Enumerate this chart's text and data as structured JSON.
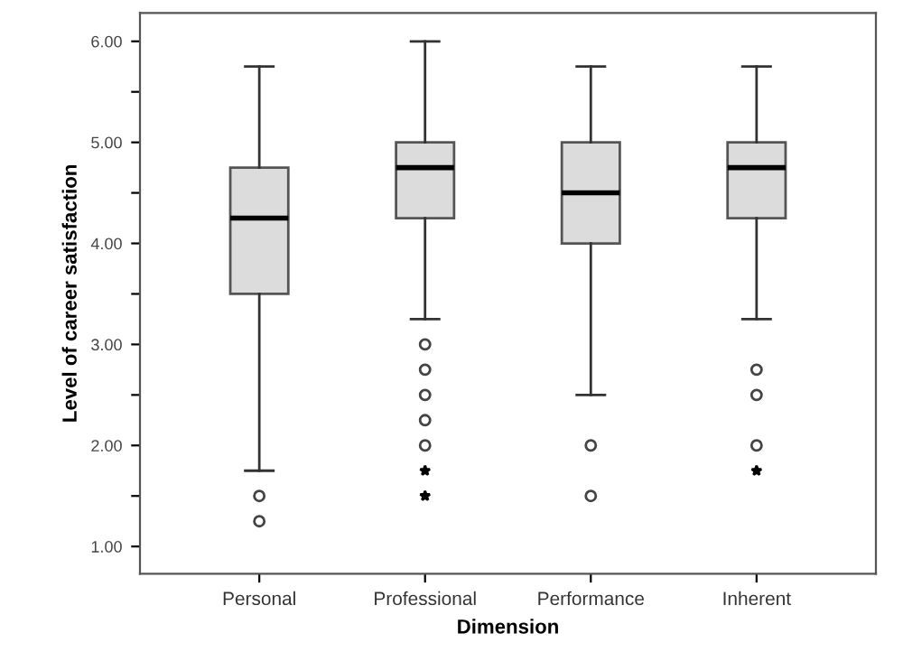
{
  "chart_data": {
    "type": "box",
    "xlabel": "Dimension",
    "ylabel": "Level of career satisfaction",
    "categories": [
      "Personal",
      "Professional",
      "Performance",
      "Inherent"
    ],
    "boxes": [
      {
        "low": 1.75,
        "q1": 3.5,
        "median": 4.25,
        "q3": 4.75,
        "high": 5.75,
        "outliers": [
          1.5,
          1.25
        ]
      },
      {
        "low": 3.25,
        "q1": 4.25,
        "median": 4.75,
        "q3": 5.0,
        "high": 6.0,
        "outliers": [
          3.0,
          2.75,
          2.5,
          2.25,
          2.0,
          1.75,
          1.5
        ]
      },
      {
        "low": 2.5,
        "q1": 4.0,
        "median": 4.5,
        "q3": 5.0,
        "high": 5.75,
        "outliers": [
          2.0,
          1.5
        ]
      },
      {
        "low": 3.25,
        "q1": 4.25,
        "median": 4.75,
        "q3": 5.0,
        "high": 5.75,
        "outliers": [
          2.75,
          2.5,
          2.0,
          1.75
        ]
      }
    ],
    "color": "#dcdcdc",
    "ylim": [
      0.73,
      6.28
    ],
    "yticks": [
      {
        "value": 1,
        "label": "1.00"
      },
      {
        "value": 1.5,
        "label": null
      },
      {
        "value": 2,
        "label": "2.00"
      },
      {
        "value": 2.5,
        "label": null
      },
      {
        "value": 3,
        "label": "3.00"
      },
      {
        "value": 3.5,
        "label": null
      },
      {
        "value": 4,
        "label": "4.00"
      },
      {
        "value": 4.5,
        "label": null
      },
      {
        "value": 5,
        "label": "5.00"
      },
      {
        "value": 5.5,
        "label": null
      },
      {
        "value": 6,
        "label": "6.00"
      }
    ],
    "grid": false
  }
}
